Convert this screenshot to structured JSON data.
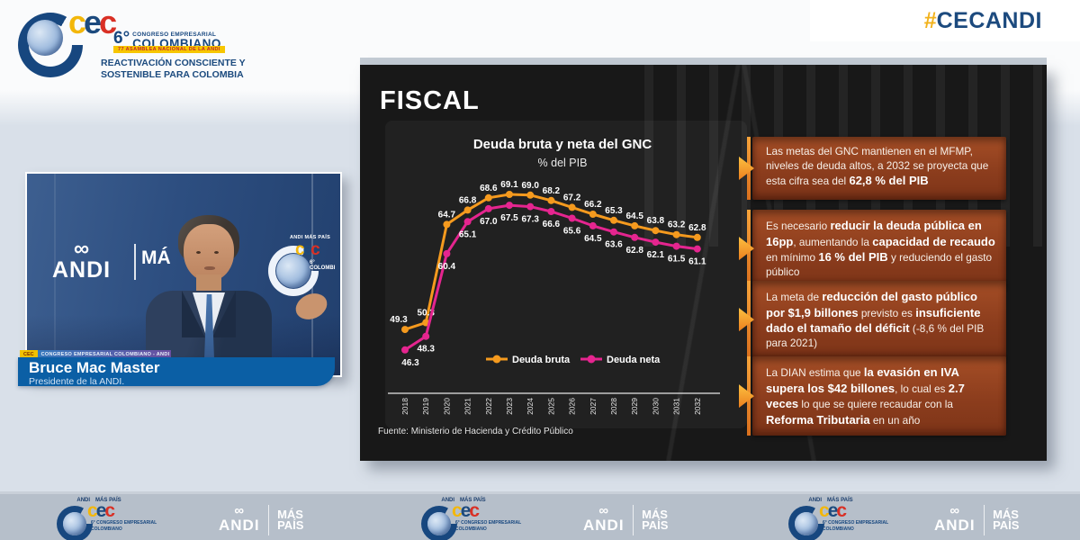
{
  "colors": {
    "accent_orange": "#F59A1E",
    "accent_magenta": "#E5258F",
    "bullet_box": "#9A4522",
    "banner_blue": "#0B5FA5",
    "hashtag_gold": "#F2B21B",
    "hashtag_navy": "#1C4A7E"
  },
  "header": {
    "hashtag_hash": "#",
    "hashtag_text": "CECANDI",
    "logo": {
      "c1": "c",
      "e1": "e",
      "c2": "c",
      "edition": "6°",
      "line1": "CONGRESO EMPRESARIAL",
      "line2": "COLOMBIANO",
      "ribbon": "77 ASAMBLEA NACIONAL DE LA ANDI",
      "tagline1": "REACTIVACIÓN CONSCIENTE Y",
      "tagline2": "SOSTENIBLE PARA COLOMBIA"
    }
  },
  "speaker": {
    "name": "Bruce Mac Master",
    "title": "Presidente de la ANDI.",
    "strip_tag": "CEC",
    "strip_text": "CONGRESO EMPRESARIAL COLOMBIANO - ANDI",
    "backdrop_andi_glyph": "∞",
    "backdrop_andi": "ANDI",
    "backdrop_partial": "MÁ",
    "badge_top": "ANDI  MÁS PAÍS",
    "badge_c1": "c",
    "badge_e1": "e",
    "badge_c2": "c",
    "badge_sub": "6° COLOMBI"
  },
  "slide": {
    "title": "FISCAL",
    "source": "Fuente: Ministerio de Hacienda y Crédito Público",
    "bullets": [
      {
        "segments": [
          {
            "t": "Las metas del GNC mantienen en el MFMP, niveles de deuda altos, a 2032 se proyecta que esta cifra sea del "
          },
          {
            "t": "62,8 % del PIB",
            "b": 1
          }
        ]
      },
      {
        "segments": [
          {
            "t": "Es necesario "
          },
          {
            "t": "reducir la deuda pública en 16pp",
            "b": 1
          },
          {
            "t": ", aumentando la "
          },
          {
            "t": "capacidad de recaudo",
            "b": 1
          },
          {
            "t": " en mínimo "
          },
          {
            "t": "16 % del PIB",
            "b": 1
          },
          {
            "t": " y reduciendo el gasto público"
          }
        ]
      },
      {
        "segments": [
          {
            "t": "La meta de "
          },
          {
            "t": "reducción del gasto público por $1,9 billones",
            "b": 1
          },
          {
            "t": " previsto es "
          },
          {
            "t": "insuficiente dado el tamaño del déficit",
            "b": 1
          },
          {
            "t": " (-8,6 % del PIB para 2021)"
          }
        ]
      },
      {
        "segments": [
          {
            "t": "La DIAN estima que "
          },
          {
            "t": "la evasión en IVA supera los $42 billones",
            "b": 1
          },
          {
            "t": ", lo cual es "
          },
          {
            "t": "2.7 veces",
            "b": 1
          },
          {
            "t": " lo que se quiere recaudar con la "
          },
          {
            "t": "Reforma Tributaria",
            "b": 1
          },
          {
            "t": " en un año"
          }
        ]
      }
    ]
  },
  "chart_data": {
    "type": "line",
    "title": "Deuda bruta y neta del GNC",
    "subtitle": "% del PIB",
    "categories": [
      "2018",
      "2019",
      "2020",
      "2021",
      "2022",
      "2023",
      "2024",
      "2025",
      "2026",
      "2027",
      "2028",
      "2029",
      "2030",
      "2031",
      "2032"
    ],
    "series": [
      {
        "name": "Deuda bruta",
        "color": "#F59A1E",
        "values": [
          49.3,
          50.3,
          64.7,
          66.8,
          68.6,
          69.1,
          69.0,
          68.2,
          67.2,
          66.2,
          65.3,
          64.5,
          63.8,
          63.2,
          62.8
        ]
      },
      {
        "name": "Deuda neta",
        "color": "#E5258F",
        "values": [
          46.3,
          48.3,
          60.4,
          65.1,
          67.0,
          67.5,
          67.3,
          66.6,
          65.6,
          64.5,
          63.6,
          62.8,
          62.1,
          61.5,
          61.1
        ]
      }
    ],
    "ylim": [
      44,
      71
    ],
    "grid": false,
    "legend_position": "bottom-center",
    "data_labels": true
  },
  "footer": {
    "glyph": "∞",
    "andi": "ANDI",
    "mas1": "MÁS",
    "mas2": "PAÍS",
    "c1": "c",
    "e1": "e",
    "c2": "c",
    "cec_edition": "6°",
    "cec_line1": "CONGRESO EMPRESARIAL",
    "cec_line2": "COLOMBIANO"
  }
}
